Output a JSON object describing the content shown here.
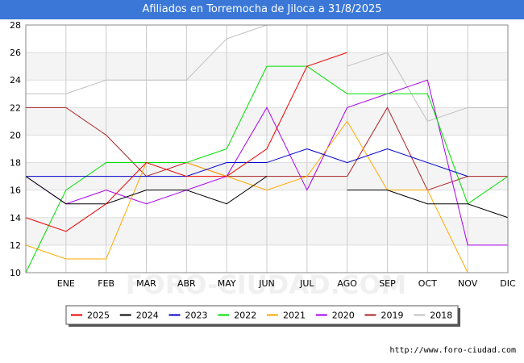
{
  "chart_data": {
    "type": "line",
    "title": "Afiliados en Torremocha de Jiloca a 31/8/2025",
    "watermark": "FORO-CIUDAD.COM",
    "source": "http://www.foro-ciudad.com",
    "x_labels": [
      "",
      "ENE",
      "FEB",
      "MAR",
      "ABR",
      "MAY",
      "JUN",
      "JUL",
      "AGO",
      "SEP",
      "OCT",
      "NOV",
      "DIC"
    ],
    "ylim": [
      10,
      28
    ],
    "y_ticks": [
      10,
      12,
      14,
      16,
      18,
      20,
      22,
      24,
      26,
      28
    ],
    "series": [
      {
        "name": "2025",
        "color": "#ee0000",
        "values": [
          14,
          13,
          15,
          18,
          17,
          17,
          19,
          25,
          26
        ]
      },
      {
        "name": "2024",
        "color": "#000000",
        "values": [
          17,
          15,
          15,
          16,
          16,
          15,
          17,
          null,
          16,
          16,
          15,
          15,
          14
        ]
      },
      {
        "name": "2023",
        "color": "#0000cc",
        "values": [
          17,
          17,
          17,
          17,
          17,
          18,
          18,
          19,
          18,
          19,
          18,
          17,
          null
        ]
      },
      {
        "name": "2022",
        "color": "#00dd00",
        "values": [
          10,
          16,
          18,
          18,
          18,
          19,
          25,
          25,
          23,
          23,
          23,
          15,
          17
        ]
      },
      {
        "name": "2021",
        "color": "#ffaa00",
        "values": [
          12,
          11,
          11,
          18,
          18,
          17,
          16,
          17,
          21,
          16,
          16,
          10,
          null
        ]
      },
      {
        "name": "2020",
        "color": "#aa00ee",
        "values": [
          17,
          15,
          16,
          15,
          16,
          17,
          22,
          16,
          22,
          23,
          24,
          12,
          12
        ]
      },
      {
        "name": "2019",
        "color": "#aa2222",
        "values": [
          22,
          22,
          20,
          17,
          18,
          17,
          17,
          17,
          17,
          22,
          16,
          17,
          17
        ]
      },
      {
        "name": "2018",
        "color": "#c0c0c0",
        "values": [
          23,
          23,
          24,
          24,
          24,
          27,
          28,
          null,
          25,
          26,
          21,
          22,
          22
        ]
      }
    ]
  }
}
